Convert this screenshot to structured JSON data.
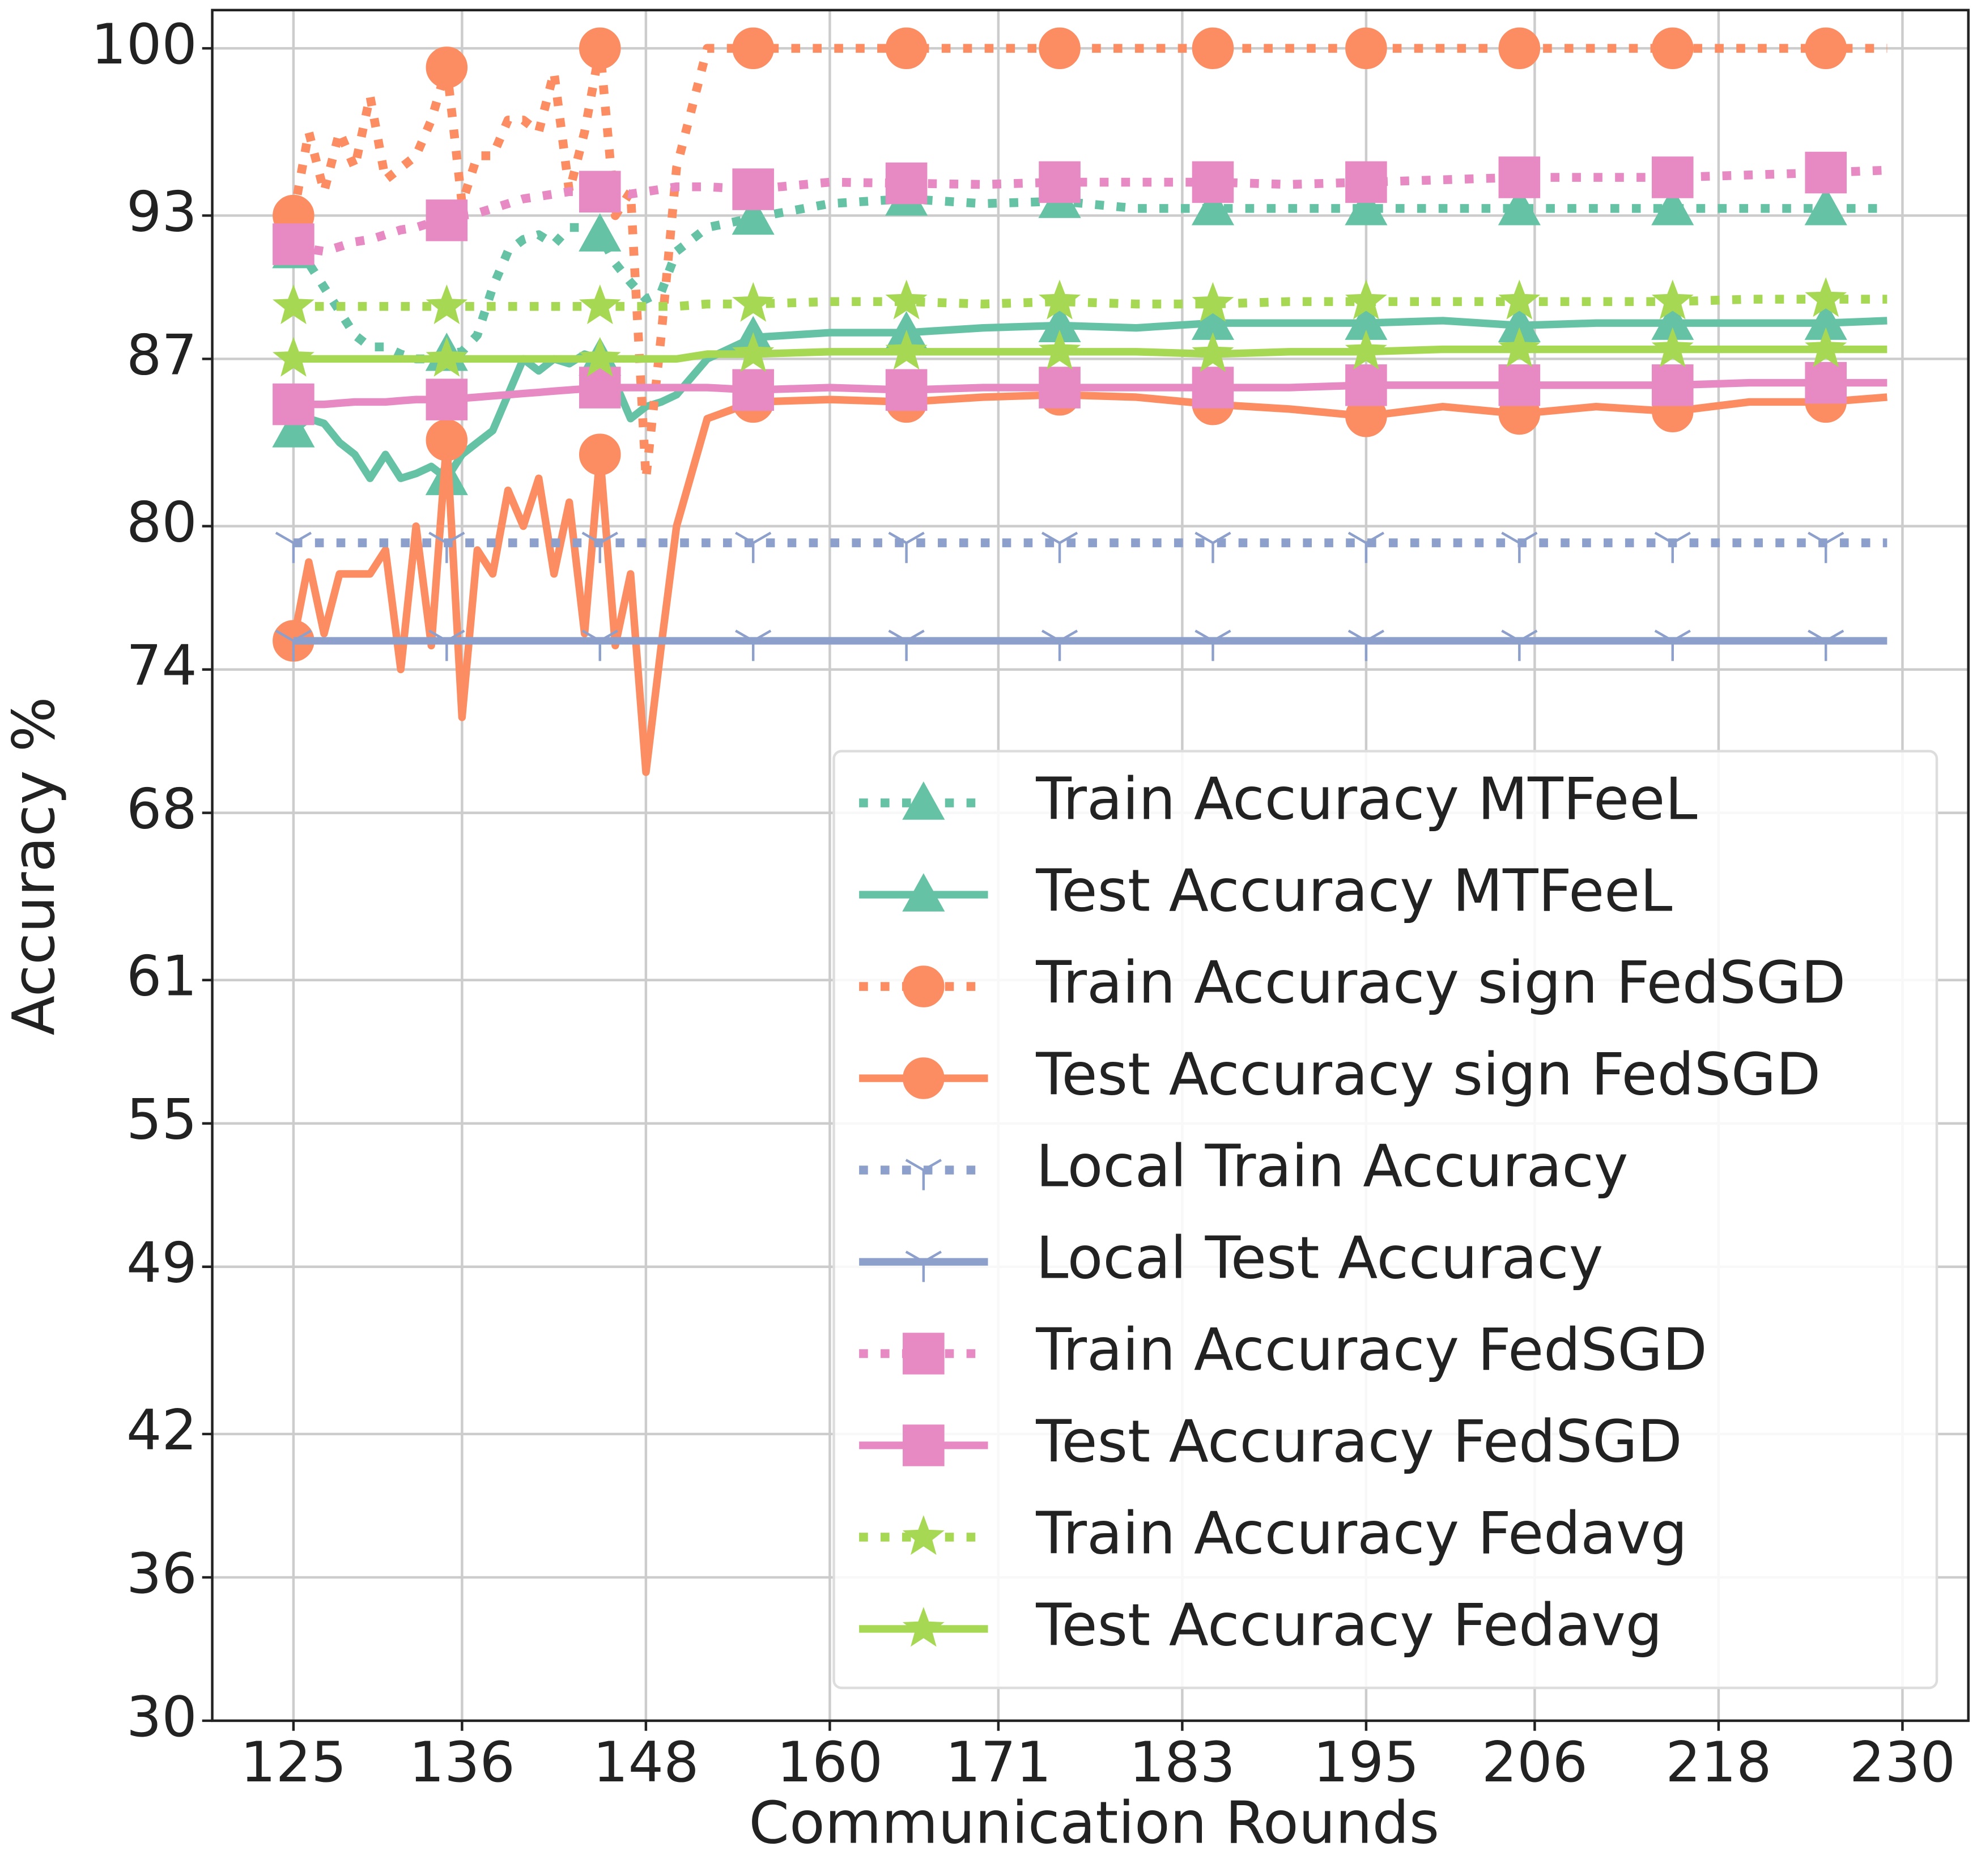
{
  "chart_data": {
    "type": "line",
    "x_label": "Communication Rounds",
    "y_label": "Accuracy %",
    "x": [
      125,
      126,
      127,
      128,
      129,
      130,
      131,
      132,
      133,
      134,
      135,
      136,
      137,
      138,
      139,
      140,
      141,
      142,
      143,
      144,
      145,
      146,
      147,
      148,
      149,
      150,
      152,
      155,
      160,
      165,
      170,
      175,
      180,
      185,
      190,
      195,
      200,
      205,
      210,
      215,
      220,
      225,
      229
    ],
    "xlim": [
      119.7,
      234.3
    ],
    "xticks": [
      125,
      136,
      148,
      160,
      171,
      183,
      195,
      206,
      218,
      230
    ],
    "ylim": [
      30,
      101.6
    ],
    "yticks": [
      30,
      36,
      42,
      49,
      55,
      61,
      68,
      74,
      80,
      87,
      93,
      100
    ],
    "grid": true,
    "legend": "lower right",
    "series": [
      {
        "name": "Train Accuracy MTFeeL",
        "color": "#66c2a5",
        "linestyle": "dotted",
        "marker": "triangle",
        "values": [
          91.5,
          91,
          90,
          89,
          88,
          87.5,
          87.5,
          87.2,
          87,
          87,
          87.2,
          87.3,
          88,
          90,
          91.5,
          92,
          92.2,
          91.8,
          92.5,
          92.5,
          92.2,
          91,
          90.2,
          89.5,
          89.8,
          91.5,
          92.5,
          92.9,
          93.5,
          93.7,
          93.5,
          93.6,
          93.3,
          93.3,
          93.3,
          93.3,
          93.3,
          93.3,
          93.3,
          93.3,
          93.3,
          93.3,
          93.3
        ]
      },
      {
        "name": "Test Accuracy MTFeeL",
        "color": "#66c2a5",
        "linestyle": "solid",
        "marker": "triangle",
        "values": [
          84,
          84.5,
          84.3,
          83.5,
          83,
          82,
          83,
          82,
          82.2,
          82.5,
          82,
          83,
          83.5,
          84,
          85.5,
          87,
          86.5,
          87,
          86.8,
          87.2,
          87,
          86,
          84.5,
          85,
          85.2,
          85.5,
          87,
          87.9,
          88.1,
          88.1,
          88.3,
          88.4,
          88.3,
          88.5,
          88.5,
          88.5,
          88.6,
          88.4,
          88.5,
          88.5,
          88.5,
          88.5,
          88.6
        ]
      },
      {
        "name": "Train Accuracy sign FedSGD",
        "color": "#fc8d62",
        "linestyle": "dotted",
        "marker": "circle",
        "values": [
          93,
          96.5,
          94,
          96.5,
          95,
          98,
          94.5,
          95,
          95.5,
          97,
          99.2,
          93.5,
          95.5,
          95.5,
          97,
          97,
          96.5,
          99,
          94,
          96.5,
          100,
          93,
          94,
          82,
          88,
          95,
          100,
          100,
          100,
          100,
          100,
          100,
          100,
          100,
          100,
          100,
          100,
          100,
          100,
          100,
          100,
          100,
          100
        ]
      },
      {
        "name": "Test Accuracy sign FedSGD",
        "color": "#fc8d62",
        "linestyle": "solid",
        "marker": "circle",
        "values": [
          75.2,
          78.5,
          75.5,
          78,
          78,
          78,
          79,
          74,
          80,
          75,
          83.6,
          72,
          79,
          78,
          81.5,
          80,
          82,
          78,
          81,
          75.5,
          83,
          75,
          78,
          69.7,
          75,
          80,
          84.5,
          85.2,
          85.3,
          85.2,
          85.4,
          85.5,
          85.4,
          85.1,
          84.9,
          84.6,
          85,
          84.7,
          85,
          84.8,
          85.2,
          85.2,
          85.4
        ]
      },
      {
        "name": "Local Train Accuracy",
        "color": "#8da0cb",
        "linestyle": "dotted",
        "marker": "tri_down",
        "values": [
          79.3,
          79.3,
          79.3,
          79.3,
          79.3,
          79.3,
          79.3,
          79.3,
          79.3,
          79.3,
          79.3,
          79.3,
          79.3,
          79.3,
          79.3,
          79.3,
          79.3,
          79.3,
          79.3,
          79.3,
          79.3,
          79.3,
          79.3,
          79.3,
          79.3,
          79.3,
          79.3,
          79.3,
          79.3,
          79.3,
          79.3,
          79.3,
          79.3,
          79.3,
          79.3,
          79.3,
          79.3,
          79.3,
          79.3,
          79.3,
          79.3,
          79.3,
          79.3
        ]
      },
      {
        "name": "Local Test Accuracy",
        "color": "#8da0cb",
        "linestyle": "solid",
        "marker": "tri_down",
        "values": [
          75.2,
          75.2,
          75.2,
          75.2,
          75.2,
          75.2,
          75.2,
          75.2,
          75.2,
          75.2,
          75.2,
          75.2,
          75.2,
          75.2,
          75.2,
          75.2,
          75.2,
          75.2,
          75.2,
          75.2,
          75.2,
          75.2,
          75.2,
          75.2,
          75.2,
          75.2,
          75.2,
          75.2,
          75.2,
          75.2,
          75.2,
          75.2,
          75.2,
          75.2,
          75.2,
          75.2,
          75.2,
          75.2,
          75.2,
          75.2,
          75.2,
          75.2,
          75.2
        ]
      },
      {
        "name": "Train Accuracy FedSGD",
        "color": "#e78ac3",
        "linestyle": "dotted",
        "marker": "square",
        "values": [
          91.8,
          91.6,
          91.5,
          91.7,
          91.9,
          92,
          92.2,
          92.4,
          92.5,
          92.7,
          92.8,
          93,
          93.1,
          93.3,
          93.5,
          93.7,
          93.8,
          93.9,
          94,
          94,
          94,
          94,
          93.9,
          94,
          94.1,
          94.2,
          94.2,
          94.1,
          94.4,
          94.35,
          94.3,
          94.4,
          94.4,
          94.4,
          94.3,
          94.4,
          94.5,
          94.6,
          94.6,
          94.6,
          94.7,
          94.8,
          94.9
        ]
      },
      {
        "name": "Test Accuracy FedSGD",
        "color": "#e78ac3",
        "linestyle": "solid",
        "marker": "square",
        "values": [
          85.1,
          85.1,
          85.1,
          85.15,
          85.2,
          85.2,
          85.2,
          85.25,
          85.3,
          85.3,
          85.3,
          85.35,
          85.4,
          85.45,
          85.5,
          85.55,
          85.6,
          85.65,
          85.7,
          85.75,
          85.8,
          85.8,
          85.8,
          85.8,
          85.8,
          85.8,
          85.8,
          85.7,
          85.8,
          85.7,
          85.8,
          85.8,
          85.8,
          85.8,
          85.8,
          85.9,
          85.9,
          85.9,
          85.9,
          85.9,
          86,
          86,
          86
        ]
      },
      {
        "name": "Train Accuracy Fedavg",
        "color": "#a6d854",
        "linestyle": "dotted",
        "marker": "star",
        "values": [
          89.2,
          89.2,
          89.2,
          89.2,
          89.2,
          89.2,
          89.2,
          89.2,
          89.2,
          89.2,
          89.2,
          89.2,
          89.2,
          89.2,
          89.2,
          89.2,
          89.2,
          89.2,
          89.2,
          89.2,
          89.2,
          89.2,
          89.2,
          89.2,
          89.2,
          89.2,
          89.3,
          89.3,
          89.4,
          89.4,
          89.3,
          89.4,
          89.3,
          89.3,
          89.4,
          89.4,
          89.4,
          89.4,
          89.4,
          89.4,
          89.5,
          89.5,
          89.5
        ]
      },
      {
        "name": "Test Accuracy Fedavg",
        "color": "#a6d854",
        "linestyle": "solid",
        "marker": "star",
        "values": [
          87,
          87,
          87,
          87,
          87,
          87,
          87,
          87,
          87,
          87,
          87,
          87,
          87,
          87,
          87,
          87,
          87,
          87,
          87,
          87,
          87,
          87,
          87,
          87,
          87,
          87,
          87.2,
          87.2,
          87.3,
          87.3,
          87.3,
          87.3,
          87.3,
          87.2,
          87.3,
          87.3,
          87.4,
          87.4,
          87.4,
          87.4,
          87.4,
          87.4,
          87.4
        ]
      }
    ]
  }
}
